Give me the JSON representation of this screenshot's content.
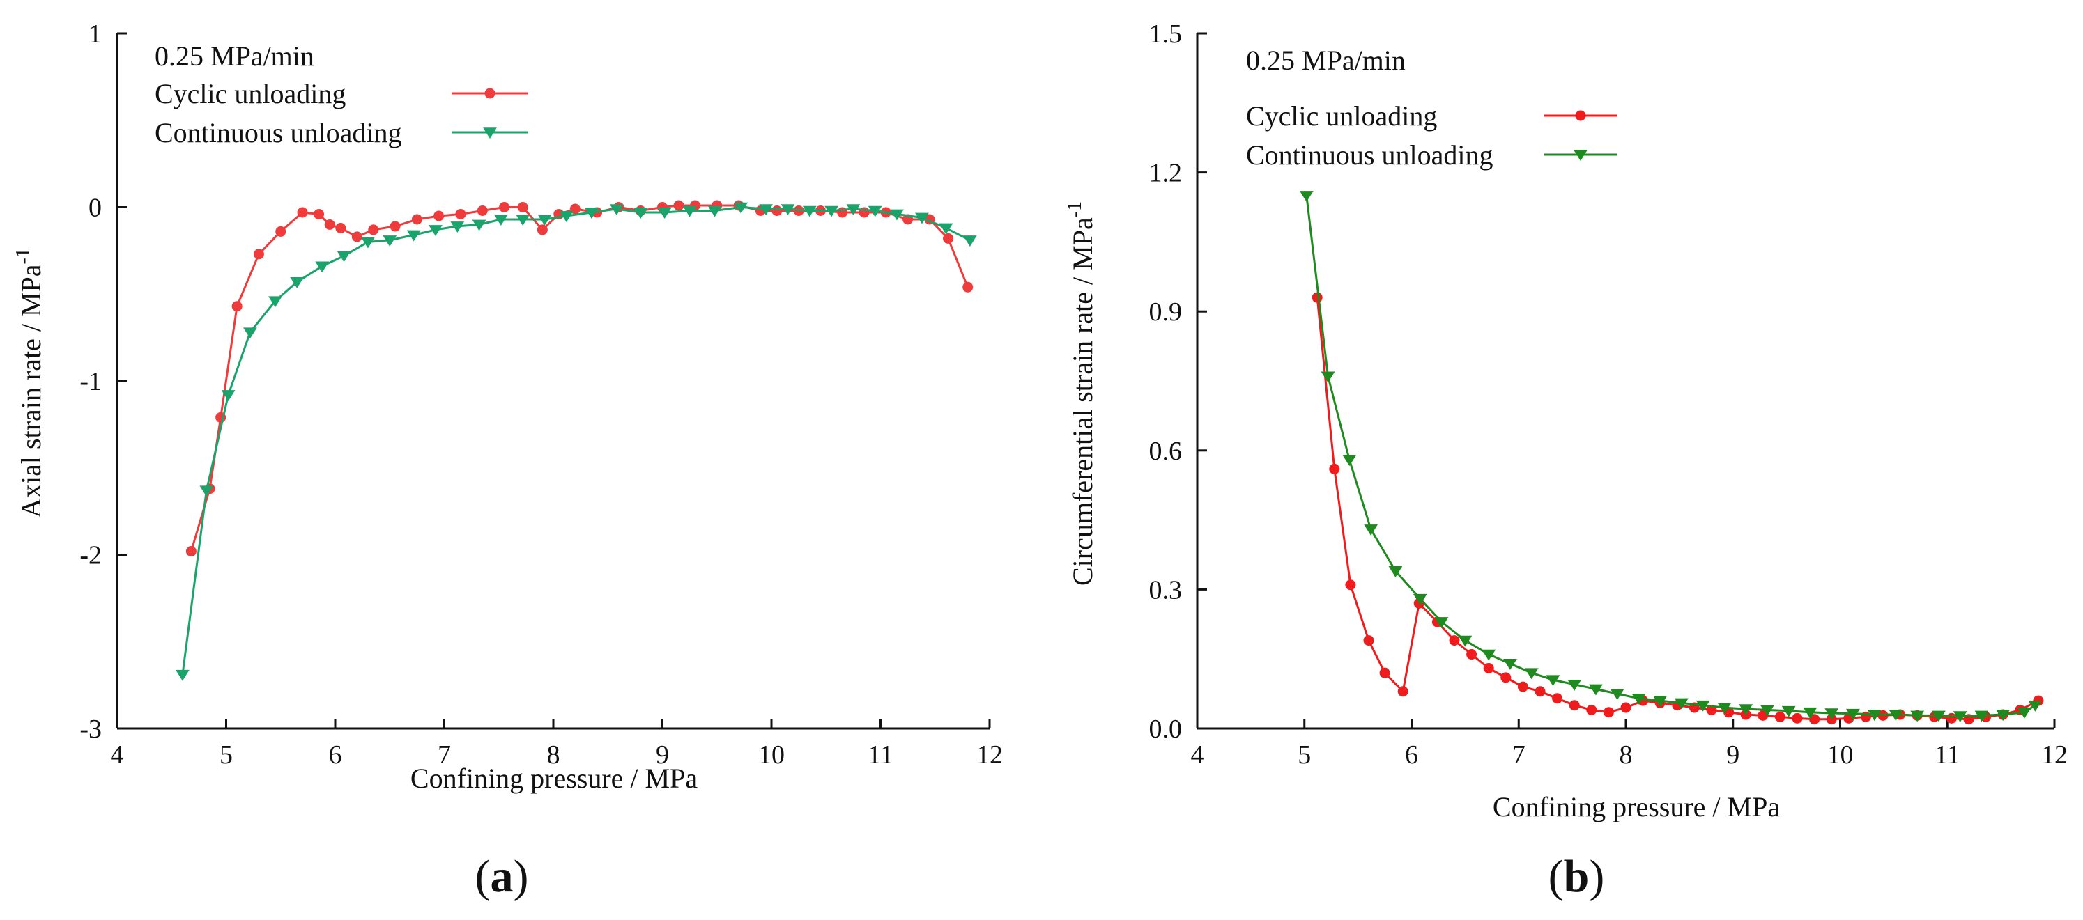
{
  "chart_data": [
    {
      "id": "panel-a",
      "panel_label": "a",
      "type": "line",
      "title": "",
      "xlabel": "Confining pressure / MPa",
      "ylabel": "Axial strain rate / MPa",
      "ylabel_superscript": "-1",
      "legend_title": "0.25 MPa/min",
      "legend_position": "top-left",
      "xlim": [
        4,
        12
      ],
      "ylim": [
        -3,
        1
      ],
      "xticks": [
        4,
        5,
        6,
        7,
        8,
        9,
        10,
        11,
        12
      ],
      "yticks": [
        -3,
        -2,
        -1,
        0,
        1
      ],
      "grid": false,
      "series": [
        {
          "name": "Cyclic unloading",
          "color": "#ee3b3b",
          "marker": "circle",
          "x": [
            4.68,
            4.85,
            4.95,
            5.1,
            5.3,
            5.5,
            5.7,
            5.85,
            5.95,
            6.05,
            6.2,
            6.35,
            6.55,
            6.75,
            6.95,
            7.15,
            7.35,
            7.55,
            7.72,
            7.9,
            8.05,
            8.2,
            8.4,
            8.6,
            8.8,
            9.0,
            9.15,
            9.3,
            9.5,
            9.7,
            9.9,
            10.05,
            10.25,
            10.45,
            10.65,
            10.85,
            11.05,
            11.25,
            11.45,
            11.62,
            11.8
          ],
          "y": [
            -1.98,
            -1.62,
            -1.21,
            -0.57,
            -0.27,
            -0.14,
            -0.03,
            -0.04,
            -0.1,
            -0.12,
            -0.17,
            -0.13,
            -0.11,
            -0.07,
            -0.05,
            -0.04,
            -0.02,
            0.0,
            0.0,
            -0.13,
            -0.04,
            -0.01,
            -0.03,
            0.0,
            -0.02,
            0.0,
            0.01,
            0.01,
            0.01,
            0.01,
            -0.02,
            -0.02,
            -0.02,
            -0.02,
            -0.03,
            -0.03,
            -0.03,
            -0.07,
            -0.07,
            -0.18,
            -0.46
          ]
        },
        {
          "name": "Continuous unloading",
          "color": "#1aa36b",
          "marker": "triangle-down",
          "x": [
            4.6,
            4.82,
            5.02,
            5.22,
            5.45,
            5.65,
            5.88,
            6.08,
            6.3,
            6.5,
            6.72,
            6.92,
            7.12,
            7.32,
            7.52,
            7.72,
            7.92,
            8.12,
            8.35,
            8.58,
            8.8,
            9.02,
            9.25,
            9.48,
            9.72,
            9.95,
            10.15,
            10.35,
            10.55,
            10.75,
            10.95,
            11.15,
            11.38,
            11.6,
            11.82
          ],
          "y": [
            -2.69,
            -1.63,
            -1.08,
            -0.72,
            -0.54,
            -0.43,
            -0.34,
            -0.28,
            -0.2,
            -0.19,
            -0.16,
            -0.13,
            -0.11,
            -0.1,
            -0.07,
            -0.07,
            -0.07,
            -0.05,
            -0.03,
            -0.01,
            -0.03,
            -0.03,
            -0.02,
            -0.02,
            0.0,
            -0.01,
            -0.01,
            -0.02,
            -0.02,
            -0.01,
            -0.02,
            -0.04,
            -0.06,
            -0.12,
            -0.19
          ]
        }
      ]
    },
    {
      "id": "panel-b",
      "panel_label": "b",
      "type": "line",
      "title": "",
      "xlabel": "Confining pressure / MPa",
      "ylabel": "Circumferential strain rate / MPa",
      "ylabel_superscript": "-1",
      "legend_title": "0.25 MPa/min",
      "legend_position": "top-left",
      "xlim": [
        4,
        12
      ],
      "ylim": [
        0,
        1.5
      ],
      "xticks": [
        4,
        5,
        6,
        7,
        8,
        9,
        10,
        11,
        12
      ],
      "yticks": [
        0.0,
        0.3,
        0.6,
        0.9,
        1.2,
        1.5
      ],
      "ytick_labels": [
        "0.0",
        "0.3",
        "0.6",
        "0.9",
        "1.2",
        "1.5"
      ],
      "grid": false,
      "series": [
        {
          "name": "Cyclic unloading",
          "color": "#ee1c1c",
          "marker": "circle",
          "x": [
            5.12,
            5.28,
            5.43,
            5.6,
            5.75,
            5.92,
            6.07,
            6.24,
            6.4,
            6.56,
            6.72,
            6.88,
            7.04,
            7.2,
            7.36,
            7.52,
            7.68,
            7.84,
            8.0,
            8.16,
            8.32,
            8.48,
            8.64,
            8.8,
            8.96,
            9.12,
            9.28,
            9.44,
            9.6,
            9.76,
            9.92,
            10.08,
            10.24,
            10.4,
            10.56,
            10.72,
            10.88,
            11.04,
            11.2,
            11.36,
            11.52,
            11.68,
            11.85
          ],
          "y": [
            0.93,
            0.56,
            0.31,
            0.19,
            0.12,
            0.08,
            0.27,
            0.23,
            0.19,
            0.16,
            0.13,
            0.11,
            0.09,
            0.08,
            0.065,
            0.05,
            0.04,
            0.035,
            0.045,
            0.06,
            0.055,
            0.05,
            0.045,
            0.04,
            0.035,
            0.03,
            0.028,
            0.025,
            0.022,
            0.02,
            0.02,
            0.022,
            0.025,
            0.028,
            0.03,
            0.028,
            0.025,
            0.022,
            0.02,
            0.025,
            0.03,
            0.04,
            0.06
          ]
        },
        {
          "name": "Continuous unloading",
          "color": "#1f8a1f",
          "marker": "triangle-down",
          "x": [
            5.02,
            5.22,
            5.42,
            5.62,
            5.85,
            6.08,
            6.28,
            6.5,
            6.72,
            6.92,
            7.12,
            7.32,
            7.52,
            7.72,
            7.92,
            8.12,
            8.32,
            8.52,
            8.72,
            8.92,
            9.12,
            9.32,
            9.52,
            9.72,
            9.92,
            10.12,
            10.32,
            10.52,
            10.72,
            10.92,
            11.12,
            11.32,
            11.52,
            11.72,
            11.82
          ],
          "y": [
            1.15,
            0.76,
            0.58,
            0.43,
            0.34,
            0.28,
            0.23,
            0.19,
            0.16,
            0.14,
            0.12,
            0.105,
            0.095,
            0.085,
            0.075,
            0.065,
            0.06,
            0.055,
            0.05,
            0.045,
            0.042,
            0.04,
            0.038,
            0.035,
            0.033,
            0.032,
            0.03,
            0.03,
            0.028,
            0.028,
            0.027,
            0.028,
            0.03,
            0.035,
            0.05
          ]
        }
      ]
    }
  ]
}
